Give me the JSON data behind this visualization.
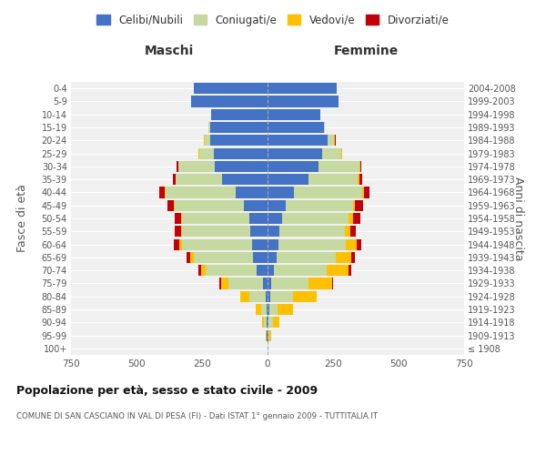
{
  "age_groups": [
    "100+",
    "95-99",
    "90-94",
    "85-89",
    "80-84",
    "75-79",
    "70-74",
    "65-69",
    "60-64",
    "55-59",
    "50-54",
    "45-49",
    "40-44",
    "35-39",
    "30-34",
    "25-29",
    "20-24",
    "15-19",
    "10-14",
    "5-9",
    "0-4"
  ],
  "birth_years": [
    "≤ 1908",
    "1909-1913",
    "1914-1918",
    "1919-1923",
    "1924-1928",
    "1929-1933",
    "1934-1938",
    "1939-1943",
    "1944-1948",
    "1949-1953",
    "1954-1958",
    "1959-1963",
    "1964-1968",
    "1969-1973",
    "1974-1978",
    "1979-1983",
    "1984-1988",
    "1989-1993",
    "1994-1998",
    "1999-2003",
    "2004-2008"
  ],
  "male": {
    "celibe": [
      0,
      2,
      3,
      5,
      8,
      18,
      40,
      55,
      60,
      65,
      70,
      90,
      120,
      175,
      200,
      205,
      220,
      220,
      215,
      290,
      280
    ],
    "coniugato": [
      0,
      3,
      10,
      20,
      60,
      130,
      195,
      225,
      265,
      260,
      255,
      265,
      270,
      175,
      140,
      55,
      20,
      5,
      2,
      0,
      0
    ],
    "vedovo": [
      0,
      2,
      8,
      20,
      35,
      30,
      20,
      15,
      12,
      5,
      5,
      3,
      2,
      2,
      2,
      3,
      2,
      0,
      0,
      0,
      0
    ],
    "divorziato": [
      0,
      0,
      0,
      0,
      2,
      5,
      10,
      15,
      20,
      25,
      25,
      25,
      20,
      10,
      5,
      2,
      2,
      0,
      0,
      0,
      0
    ]
  },
  "female": {
    "nubile": [
      0,
      3,
      5,
      8,
      12,
      15,
      25,
      35,
      40,
      45,
      55,
      70,
      100,
      155,
      195,
      210,
      230,
      215,
      200,
      270,
      265
    ],
    "coniugata": [
      0,
      5,
      15,
      30,
      85,
      140,
      200,
      225,
      260,
      250,
      255,
      255,
      260,
      190,
      155,
      70,
      25,
      5,
      3,
      2,
      0
    ],
    "vedova": [
      0,
      5,
      25,
      60,
      90,
      90,
      85,
      60,
      40,
      20,
      15,
      10,
      8,
      5,
      3,
      3,
      2,
      0,
      0,
      0,
      0
    ],
    "divorziata": [
      0,
      0,
      0,
      0,
      2,
      5,
      10,
      12,
      18,
      22,
      30,
      28,
      22,
      12,
      5,
      2,
      2,
      0,
      0,
      0,
      0
    ]
  },
  "colors": {
    "celibe": "#4472c4",
    "coniugato": "#c5d9a0",
    "vedovo": "#ffc000",
    "divorziato": "#c0000a"
  },
  "legend_labels": [
    "Celibi/Nubili",
    "Coniugati/e",
    "Vedovi/e",
    "Divorziati/e"
  ],
  "title": "Popolazione per età, sesso e stato civile - 2009",
  "subtitle": "COMUNE DI SAN CASCIANO IN VAL DI PESA (FI) - Dati ISTAT 1° gennaio 2009 - TUTTITALIA.IT",
  "xlabel_left": "Maschi",
  "xlabel_right": "Femmine",
  "ylabel_left": "Fasce di età",
  "ylabel_right": "Anni di nascita",
  "xlim": 750,
  "background_color": "#f0f0f0"
}
